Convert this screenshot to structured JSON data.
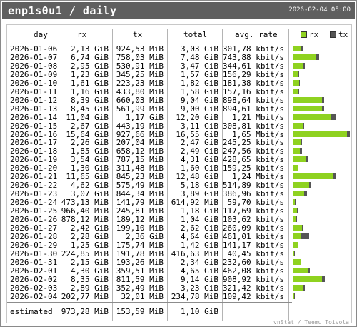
{
  "title": "enp1s0u1 / daily",
  "timestamp": "2026-02-04 05:00",
  "footer": "vnStat / Teemu Toivola",
  "columns": {
    "day": "day",
    "rx": "rx",
    "tx": "tx",
    "total": "total",
    "rate": "avg. rate"
  },
  "legend": {
    "rx": "rx",
    "tx": "tx"
  },
  "colors": {
    "rx": "#8fd220",
    "tx": "#555555"
  },
  "rows": [
    {
      "day": "2026-01-06",
      "rx": "2,13 GiB",
      "tx": "924,53 MiB",
      "total": "3,03 GiB",
      "rate": "301,78 kbit/s"
    },
    {
      "day": "2026-01-07",
      "rx": "6,74 GiB",
      "tx": "758,03 MiB",
      "total": "7,48 GiB",
      "rate": "743,88 kbit/s"
    },
    {
      "day": "2026-01-08",
      "rx": "2,95 GiB",
      "tx": "530,91 MiB",
      "total": "3,47 GiB",
      "rate": "344,61 kbit/s"
    },
    {
      "day": "2026-01-09",
      "rx": "1,23 GiB",
      "tx": "345,25 MiB",
      "total": "1,57 GiB",
      "rate": "156,29 kbit/s"
    },
    {
      "day": "2026-01-10",
      "rx": "1,61 GiB",
      "tx": "223,23 MiB",
      "total": "1,82 GiB",
      "rate": "181,38 kbit/s"
    },
    {
      "day": "2026-01-11",
      "rx": "1,16 GiB",
      "tx": "433,80 MiB",
      "total": "1,58 GiB",
      "rate": "157,16 kbit/s"
    },
    {
      "day": "2026-01-12",
      "rx": "8,39 GiB",
      "tx": "660,03 MiB",
      "total": "9,04 GiB",
      "rate": "898,64 kbit/s"
    },
    {
      "day": "2026-01-13",
      "rx": "8,45 GiB",
      "tx": "561,99 MiB",
      "total": "9,00 GiB",
      "rate": "894,61 kbit/s"
    },
    {
      "day": "2026-01-14",
      "rx": "11,04 GiB",
      "tx": "1,17 GiB",
      "total": "12,20 GiB",
      "rate": "1,21 Mbit/s"
    },
    {
      "day": "2026-01-15",
      "rx": "2,67 GiB",
      "tx": "443,19 MiB",
      "total": "3,11 GiB",
      "rate": "308,81 kbit/s"
    },
    {
      "day": "2026-01-16",
      "rx": "15,64 GiB",
      "tx": "927,66 MiB",
      "total": "16,55 GiB",
      "rate": "1,65 Mbit/s"
    },
    {
      "day": "2026-01-17",
      "rx": "2,26 GiB",
      "tx": "207,04 MiB",
      "total": "2,47 GiB",
      "rate": "245,25 kbit/s"
    },
    {
      "day": "2026-01-18",
      "rx": "1,85 GiB",
      "tx": "658,12 MiB",
      "total": "2,49 GiB",
      "rate": "247,56 kbit/s"
    },
    {
      "day": "2026-01-19",
      "rx": "3,54 GiB",
      "tx": "787,15 MiB",
      "total": "4,31 GiB",
      "rate": "428,65 kbit/s"
    },
    {
      "day": "2026-01-20",
      "rx": "1,30 GiB",
      "tx": "311,48 MiB",
      "total": "1,60 GiB",
      "rate": "159,25 kbit/s"
    },
    {
      "day": "2026-01-21",
      "rx": "11,65 GiB",
      "tx": "845,23 MiB",
      "total": "12,48 GiB",
      "rate": "1,24 Mbit/s"
    },
    {
      "day": "2026-01-22",
      "rx": "4,62 GiB",
      "tx": "575,49 MiB",
      "total": "5,18 GiB",
      "rate": "514,89 kbit/s"
    },
    {
      "day": "2026-01-23",
      "rx": "3,07 GiB",
      "tx": "844,34 MiB",
      "total": "3,89 GiB",
      "rate": "386,96 kbit/s"
    },
    {
      "day": "2026-01-24",
      "rx": "473,13 MiB",
      "tx": "141,79 MiB",
      "total": "614,92 MiB",
      "rate": "59,70 kbit/s"
    },
    {
      "day": "2026-01-25",
      "rx": "966,40 MiB",
      "tx": "245,81 MiB",
      "total": "1,18 GiB",
      "rate": "117,69 kbit/s"
    },
    {
      "day": "2026-01-26",
      "rx": "878,12 MiB",
      "tx": "189,12 MiB",
      "total": "1,04 GiB",
      "rate": "103,62 kbit/s"
    },
    {
      "day": "2026-01-27",
      "rx": "2,42 GiB",
      "tx": "199,10 MiB",
      "total": "2,62 GiB",
      "rate": "260,09 kbit/s"
    },
    {
      "day": "2026-01-28",
      "rx": "2,28 GiB",
      "tx": "2,36 GiB",
      "total": "4,64 GiB",
      "rate": "461,01 kbit/s"
    },
    {
      "day": "2026-01-29",
      "rx": "1,25 GiB",
      "tx": "175,74 MiB",
      "total": "1,42 GiB",
      "rate": "141,17 kbit/s"
    },
    {
      "day": "2026-01-30",
      "rx": "224,85 MiB",
      "tx": "191,78 MiB",
      "total": "416,63 MiB",
      "rate": "40,45 kbit/s"
    },
    {
      "day": "2026-01-31",
      "rx": "2,15 GiB",
      "tx": "193,26 MiB",
      "total": "2,34 GiB",
      "rate": "232,60 kbit/s"
    },
    {
      "day": "2026-02-01",
      "rx": "4,30 GiB",
      "tx": "359,51 MiB",
      "total": "4,65 GiB",
      "rate": "462,08 kbit/s"
    },
    {
      "day": "2026-02-02",
      "rx": "8,35 GiB",
      "tx": "811,59 MiB",
      "total": "9,14 GiB",
      "rate": "908,92 kbit/s"
    },
    {
      "day": "2026-02-03",
      "rx": "2,89 GiB",
      "tx": "352,49 MiB",
      "total": "3,23 GiB",
      "rate": "321,42 kbit/s"
    },
    {
      "day": "2026-02-04",
      "rx": "202,77 MiB",
      "tx": "32,01 MiB",
      "total": "234,78 MiB",
      "rate": "109,42 kbit/s"
    }
  ],
  "estimated": {
    "label": "estimated",
    "rx": "973,28 MiB",
    "tx": "153,59 MiB",
    "total": "1,10 GiB"
  },
  "chart_data": {
    "type": "bar",
    "categories": [
      "2026-01-06",
      "2026-01-07",
      "2026-01-08",
      "2026-01-09",
      "2026-01-10",
      "2026-01-11",
      "2026-01-12",
      "2026-01-13",
      "2026-01-14",
      "2026-01-15",
      "2026-01-16",
      "2026-01-17",
      "2026-01-18",
      "2026-01-19",
      "2026-01-20",
      "2026-01-21",
      "2026-01-22",
      "2026-01-23",
      "2026-01-24",
      "2026-01-25",
      "2026-01-26",
      "2026-01-27",
      "2026-01-28",
      "2026-01-29",
      "2026-01-30",
      "2026-01-31",
      "2026-02-01",
      "2026-02-02",
      "2026-02-03",
      "2026-02-04"
    ],
    "series": [
      {
        "name": "rx",
        "values": [
          2.13,
          6.74,
          2.95,
          1.23,
          1.61,
          1.16,
          8.39,
          8.45,
          11.04,
          2.67,
          15.64,
          2.26,
          1.85,
          3.54,
          1.3,
          11.65,
          4.62,
          3.07,
          0.462,
          0.944,
          0.858,
          2.42,
          2.28,
          1.25,
          0.22,
          2.15,
          4.3,
          8.35,
          2.89,
          0.198
        ]
      },
      {
        "name": "tx",
        "values": [
          0.903,
          0.74,
          0.518,
          0.337,
          0.218,
          0.424,
          0.645,
          0.549,
          1.17,
          0.433,
          0.906,
          0.202,
          0.643,
          0.769,
          0.304,
          0.825,
          0.562,
          0.825,
          0.138,
          0.24,
          0.185,
          0.194,
          2.36,
          0.172,
          0.187,
          0.189,
          0.351,
          0.793,
          0.344,
          0.031
        ]
      }
    ],
    "stacked": true,
    "orientation": "horizontal",
    "legend": "top-right",
    "xlim": [
      0,
      16.55
    ]
  }
}
